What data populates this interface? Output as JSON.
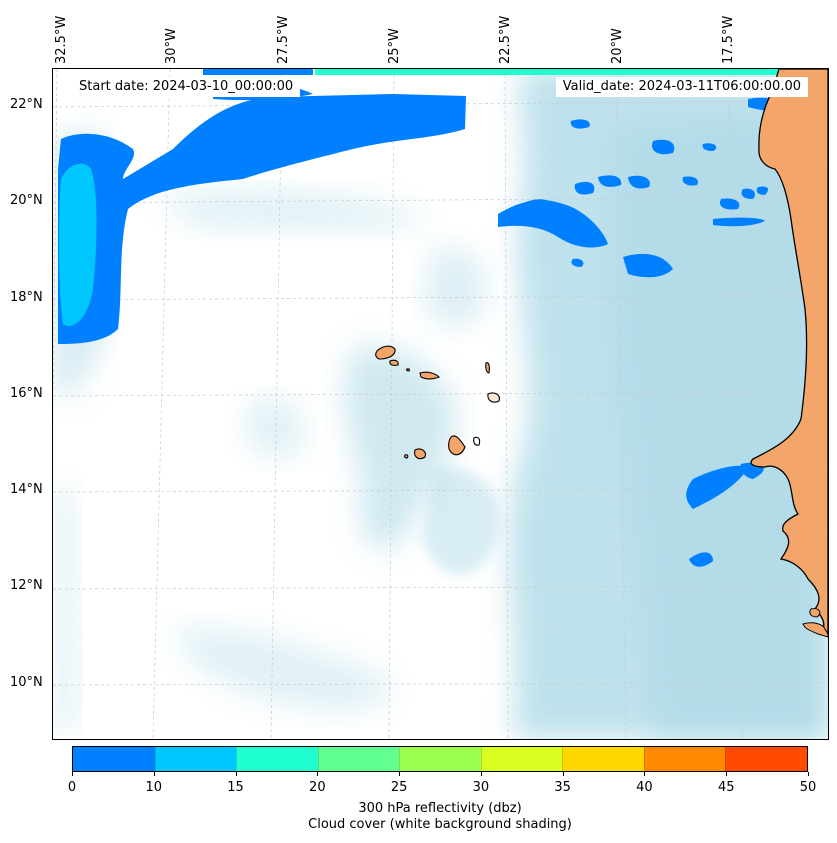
{
  "info": {
    "start_date": "Start date: 2024-03-10_00:00:00",
    "valid_date": "Valid_date: 2024-03-11T06:00:00.00"
  },
  "axes": {
    "longitude_labels": [
      "32.5°W",
      "30°W",
      "27.5°W",
      "25°W",
      "22.5°W",
      "20°W",
      "17.5°W"
    ],
    "latitude_labels": [
      "22°N",
      "20°N",
      "18°N",
      "16°N",
      "14°N",
      "12°N",
      "10°N"
    ]
  },
  "colorbar": {
    "ticks": [
      "0",
      "10",
      "15",
      "20",
      "25",
      "30",
      "35",
      "40",
      "45",
      "50"
    ],
    "colors": [
      "#0080ff",
      "#00c8ff",
      "#20ffd0",
      "#60ff90",
      "#9cff50",
      "#d8ff20",
      "#ffd800",
      "#ff8a00",
      "#ff4a00"
    ],
    "label_line1": "300 hPa reflectivity (dbz)",
    "label_line2": "Cloud cover (white background shading)"
  },
  "colors": {
    "land": "#f3a56a",
    "cloud": "#aad8e6",
    "reflectivity_low": "#0080ff",
    "reflectivity_mid": "#00c8ff",
    "reflectivity_high": "#20ffd0"
  }
}
